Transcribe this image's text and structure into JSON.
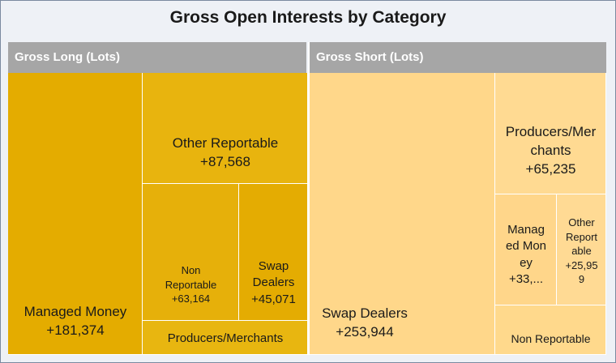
{
  "chart_data": {
    "type": "treemap",
    "title": "Gross Open Interests by Category",
    "groups": [
      {
        "name": "Gross Long (Lots)",
        "items": [
          {
            "category": "Managed Money",
            "value_label": "+181,374",
            "value": 181374
          },
          {
            "category": "Other Reportable",
            "value_label": "+87,568",
            "value": 87568
          },
          {
            "category": "Non Reportable",
            "value_label": "+63,164",
            "value": 63164
          },
          {
            "category": "Swap Dealers",
            "value_label": "+45,071",
            "value": 45071
          },
          {
            "category": "Producers/Merchants",
            "value_label": "",
            "value": null
          }
        ]
      },
      {
        "name": "Gross Short (Lots)",
        "items": [
          {
            "category": "Swap Dealers",
            "value_label": "+253,944",
            "value": 253944
          },
          {
            "category": "Producers/Merchants",
            "value_label": "+65,235",
            "value": 65235
          },
          {
            "category": "Managed Money",
            "value_label": "+33,...",
            "value": null
          },
          {
            "category": "Other Reportable",
            "value_label": "+25,959",
            "value": 25959
          },
          {
            "category": "Non Reportable",
            "value_label": "",
            "value": null
          }
        ]
      }
    ],
    "colors": {
      "long": "#e8b000",
      "short": "#ffd98a",
      "header": "#a6a6a6"
    }
  }
}
